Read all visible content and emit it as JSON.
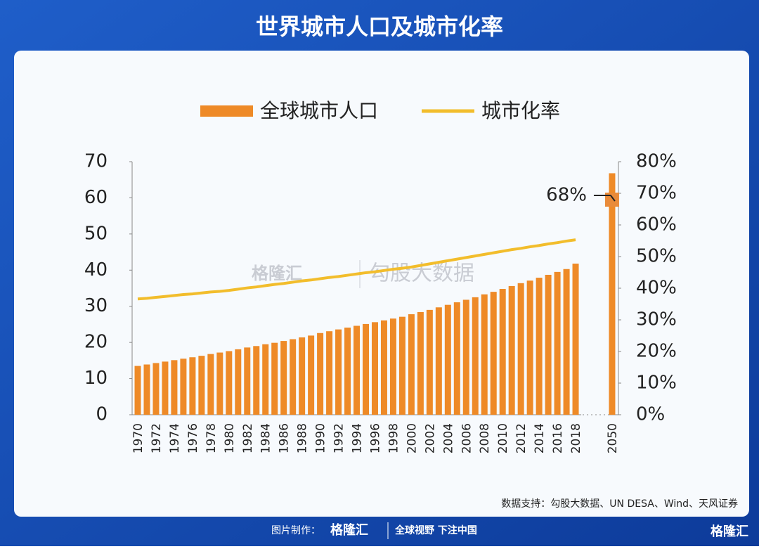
{
  "header": {
    "title": "世界城市人口及城市化率"
  },
  "chart_data": {
    "type": "bar-line",
    "categories": [
      "1970",
      null,
      "1972",
      null,
      "1974",
      null,
      "1976",
      null,
      "1978",
      null,
      "1980",
      null,
      "1982",
      null,
      "1984",
      null,
      "1986",
      null,
      "1988",
      null,
      "1990",
      null,
      "1992",
      null,
      "1994",
      null,
      "1996",
      null,
      "1998",
      null,
      "2000",
      null,
      "2002",
      null,
      "2004",
      null,
      "2006",
      null,
      "2008",
      null,
      "2010",
      null,
      "2012",
      null,
      "2014",
      null,
      "2016",
      null,
      "2018",
      "2050"
    ],
    "series": [
      {
        "name": "全球城市人口",
        "color": "#ee8a27",
        "values": [
          13.5,
          13.9,
          14.3,
          14.7,
          15.1,
          15.5,
          15.9,
          16.3,
          16.8,
          17.2,
          17.6,
          18.1,
          18.6,
          19.0,
          19.5,
          19.9,
          20.4,
          20.9,
          21.4,
          21.9,
          22.6,
          23.1,
          23.6,
          24.1,
          24.6,
          25.1,
          25.6,
          26.1,
          26.6,
          27.1,
          27.8,
          28.4,
          29.0,
          29.7,
          30.4,
          31.1,
          31.8,
          32.5,
          33.3,
          34.0,
          34.8,
          35.6,
          36.4,
          37.1,
          37.9,
          38.7,
          39.5,
          40.3,
          41.8,
          66.8
        ]
      },
      {
        "name": "城市化率",
        "color": "#f2bd2c",
        "axis": "y2",
        "values": [
          36.6,
          36.8,
          37.1,
          37.4,
          37.7,
          38.0,
          38.2,
          38.5,
          38.8,
          39.0,
          39.3,
          39.7,
          40.1,
          40.4,
          40.8,
          41.2,
          41.5,
          41.9,
          42.3,
          42.6,
          43.0,
          43.4,
          43.7,
          44.1,
          44.5,
          44.9,
          45.2,
          45.6,
          46.0,
          46.3,
          46.7,
          47.2,
          47.7,
          48.2,
          48.7,
          49.2,
          49.7,
          50.2,
          50.7,
          51.2,
          51.7,
          52.2,
          52.6,
          53.1,
          53.5,
          54.0,
          54.4,
          54.9,
          55.3,
          null
        ]
      }
    ],
    "ylim": [
      0,
      70
    ],
    "yticks": [
      0,
      10,
      20,
      30,
      40,
      50,
      60,
      70
    ],
    "y2lim": [
      0,
      80
    ],
    "y2ticks": [
      {
        "value": 0,
        "label": "0%"
      },
      {
        "value": 10,
        "label": "10%"
      },
      {
        "value": 20,
        "label": "20%"
      },
      {
        "value": 30,
        "label": "30%"
      },
      {
        "value": 40,
        "label": "40%"
      },
      {
        "value": 50,
        "label": "50%"
      },
      {
        "value": 60,
        "label": "60%"
      },
      {
        "value": 70,
        "label": "70%"
      },
      {
        "value": 80,
        "label": "80%"
      }
    ],
    "annotation": {
      "text": "68%",
      "value": 68
    },
    "legend": "top"
  },
  "watermark": {
    "brand": "格隆汇",
    "text": "勾股大数据"
  },
  "source": "数据支持：勾股大数据、UN DESA、Wind、天风证券",
  "footer": {
    "label": "图片制作：",
    "brand": "格隆汇",
    "slogan": "全球视野 下注中国",
    "corner": "格隆汇"
  }
}
